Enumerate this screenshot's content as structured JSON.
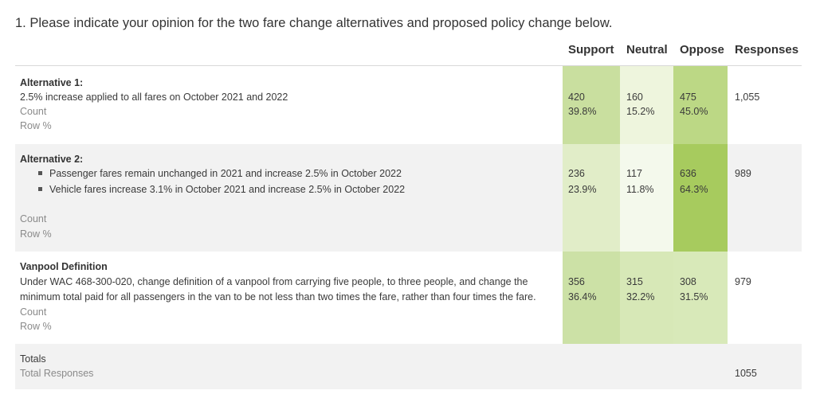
{
  "question": "1. Please indicate your opinion for the two fare change alternatives and proposed policy change below.",
  "headers": {
    "support": "Support",
    "neutral": "Neutral",
    "oppose": "Oppose",
    "responses": "Responses"
  },
  "labels": {
    "count": "Count",
    "row_pct": "Row %"
  },
  "rows": [
    {
      "title": "Alternative 1:",
      "desc": "2.5% increase applied to all fares on October 2021 and 2022",
      "support": {
        "count": "420",
        "pct": "39.8%",
        "shade": "#c9df9f"
      },
      "neutral": {
        "count": "160",
        "pct": "15.2%",
        "shade": "#eef5dd"
      },
      "oppose": {
        "count": "475",
        "pct": "45.0%",
        "shade": "#bcd885"
      },
      "responses": "1,055"
    },
    {
      "title": "Alternative 2:",
      "bullets": [
        "Passenger fares remain unchanged in 2021 and increase 2.5% in October 2022",
        "Vehicle fares increase 3.1% in October 2021 and increase 2.5% in October 2022"
      ],
      "support": {
        "count": "236",
        "pct": "23.9%",
        "shade": "#e1edc8"
      },
      "neutral": {
        "count": "117",
        "pct": "11.8%",
        "shade": "#f4f9ec"
      },
      "oppose": {
        "count": "636",
        "pct": "64.3%",
        "shade": "#a7cb5e"
      },
      "responses": "989"
    },
    {
      "title": "Vanpool Definition",
      "desc_lines": [
        "Under WAC 468-300-020, change definition of a vanpool from carrying five people, to three people, and change the",
        "minimum total paid for all passengers in the van to be not less than two times the fare, rather than four times the fare."
      ],
      "support": {
        "count": "356",
        "pct": "36.4%",
        "shade": "#cce1a6"
      },
      "neutral": {
        "count": "315",
        "pct": "32.2%",
        "shade": "#d7e8b7"
      },
      "oppose": {
        "count": "308",
        "pct": "31.5%",
        "shade": "#d8e9b9"
      },
      "responses": "979"
    }
  ],
  "totals": {
    "label": "Totals",
    "sub_label": "Total Responses",
    "value": "1055"
  }
}
